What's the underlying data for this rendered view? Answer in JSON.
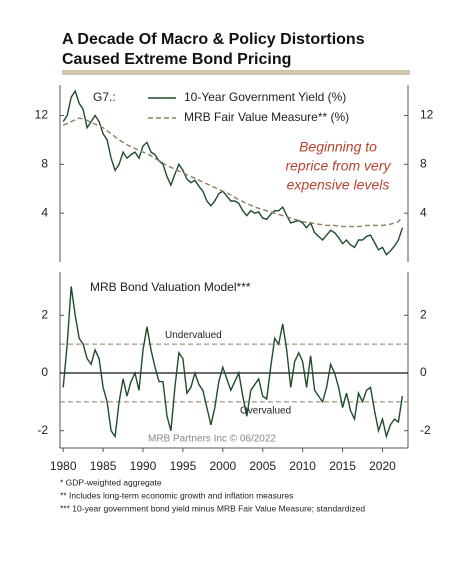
{
  "chart_data": [
    {
      "type": "line",
      "title": [
        "A Decade Of Macro & Policy Distortions",
        "Caused Extreme Bond Pricing"
      ],
      "legend_title": "G7.:",
      "annotation": [
        "Beginning to",
        "reprice from very",
        "expensive levels"
      ],
      "xlim": [
        1979.6,
        2023.2
      ],
      "ylim": [
        0,
        14.5
      ],
      "yticks": [
        4,
        8,
        12
      ],
      "y2lim": [
        0,
        14.5
      ],
      "y2ticks": [
        4,
        8,
        12
      ],
      "series": [
        {
          "name": "10-Year Government Yield (%)",
          "color": "#1f4d2b",
          "dash": false,
          "x": [
            1980,
            1980.5,
            1981,
            1981.5,
            1982,
            1982.5,
            1983,
            1983.5,
            1984,
            1984.5,
            1985,
            1985.5,
            1986,
            1986.5,
            1987,
            1987.5,
            1988,
            1988.5,
            1989,
            1989.5,
            1990,
            1990.5,
            1991,
            1991.5,
            1992,
            1992.5,
            1993,
            1993.5,
            1994,
            1994.5,
            1995,
            1995.5,
            1996,
            1996.5,
            1997,
            1997.5,
            1998,
            1998.5,
            1999,
            1999.5,
            2000,
            2000.5,
            2001,
            2001.5,
            2002,
            2002.5,
            2003,
            2003.5,
            2004,
            2004.5,
            2005,
            2005.5,
            2006,
            2006.5,
            2007,
            2007.5,
            2008,
            2008.5,
            2009,
            2009.5,
            2010,
            2010.5,
            2011,
            2011.5,
            2012,
            2012.5,
            2013,
            2013.5,
            2014,
            2014.5,
            2015,
            2015.5,
            2016,
            2016.5,
            2017,
            2017.5,
            2018,
            2018.5,
            2019,
            2019.5,
            2020,
            2020.5,
            2021,
            2021.5,
            2022,
            2022.5
          ],
          "values": [
            11.5,
            12,
            13.5,
            14,
            13,
            12.5,
            11,
            11.5,
            12,
            11.5,
            10.5,
            10,
            8.5,
            7.5,
            8,
            9,
            8.5,
            8.8,
            9,
            8.5,
            9.5,
            9.8,
            9,
            8.8,
            8.3,
            8,
            7,
            6.3,
            7.2,
            8,
            7.5,
            6.8,
            6.5,
            6.7,
            6.2,
            5.8,
            5,
            4.6,
            5,
            5.6,
            5.8,
            5.4,
            5,
            5,
            4.8,
            4.2,
            3.8,
            4.2,
            4,
            4.1,
            3.6,
            3.5,
            3.9,
            4.2,
            4.2,
            4.5,
            3.8,
            3.2,
            3.3,
            3.4,
            3.2,
            2.8,
            3.2,
            2.4,
            2.1,
            1.8,
            2.2,
            2.6,
            2.4,
            2,
            1.5,
            1.8,
            1.4,
            1.2,
            1.8,
            1.8,
            2.1,
            2.2,
            1.6,
            1,
            1.2,
            0.6,
            0.9,
            1.3,
            1.8,
            2.8
          ]
        },
        {
          "name": "MRB Fair Value Measure** (%)",
          "color": "#8a8060",
          "dash": true,
          "x": [
            1980,
            1981,
            1982,
            1983,
            1984,
            1985,
            1986,
            1987,
            1988,
            1989,
            1990,
            1991,
            1992,
            1993,
            1994,
            1995,
            1996,
            1997,
            1998,
            1999,
            2000,
            2001,
            2002,
            2003,
            2004,
            2005,
            2006,
            2007,
            2008,
            2009,
            2010,
            2011,
            2012,
            2013,
            2014,
            2015,
            2016,
            2017,
            2018,
            2019,
            2020,
            2021,
            2022,
            2022.5
          ],
          "values": [
            11.2,
            11.5,
            11.8,
            11.6,
            11.3,
            11,
            10.5,
            10,
            9.6,
            9.3,
            9,
            8.7,
            8.3,
            7.9,
            7.6,
            7.3,
            7,
            6.7,
            6.4,
            6.1,
            5.8,
            5.5,
            5.1,
            4.8,
            4.5,
            4.3,
            4.1,
            3.9,
            3.7,
            3.5,
            3.3,
            3.2,
            3.1,
            3,
            3,
            2.9,
            2.9,
            2.9,
            3,
            3,
            3,
            3.1,
            3.3,
            3.7
          ]
        }
      ]
    },
    {
      "type": "line",
      "title": "MRB Bond Valuation Model***",
      "source": "MRB Partners Inc © 06/2022",
      "xlim": [
        1979.6,
        2023.2
      ],
      "xticks": [
        1980,
        1985,
        1990,
        1995,
        2000,
        2005,
        2010,
        2015,
        2020
      ],
      "ylim": [
        -2.6,
        3.5
      ],
      "yticks": [
        -2,
        0,
        2
      ],
      "y2lim": [
        -2.6,
        3.5
      ],
      "y2ticks": [
        -2,
        0,
        2
      ],
      "reference_lines": [
        {
          "value": 1,
          "label": "Undervalued",
          "dash": true
        },
        {
          "value": 0,
          "dash": false
        },
        {
          "value": -1,
          "label": "Overvalued",
          "dash": true
        }
      ],
      "series": [
        {
          "color": "#1f4d2b",
          "x": [
            1980,
            1980.5,
            1981,
            1981.5,
            1982,
            1982.5,
            1983,
            1983.5,
            1984,
            1984.5,
            1985,
            1985.5,
            1986,
            1986.5,
            1987,
            1987.5,
            1988,
            1988.5,
            1989,
            1989.5,
            1990,
            1990.5,
            1991,
            1991.5,
            1992,
            1992.5,
            1993,
            1993.5,
            1994,
            1994.5,
            1995,
            1995.5,
            1996,
            1996.5,
            1997,
            1997.5,
            1998,
            1998.5,
            1999,
            1999.5,
            2000,
            2000.5,
            2001,
            2001.5,
            2002,
            2002.5,
            2003,
            2003.5,
            2004,
            2004.5,
            2005,
            2005.5,
            2006,
            2006.5,
            2007,
            2007.5,
            2008,
            2008.5,
            2009,
            2009.5,
            2010,
            2010.5,
            2011,
            2011.5,
            2012,
            2012.5,
            2013,
            2013.5,
            2014,
            2014.5,
            2015,
            2015.5,
            2016,
            2016.5,
            2017,
            2017.5,
            2018,
            2018.5,
            2019,
            2019.5,
            2020,
            2020.5,
            2021,
            2021.5,
            2022,
            2022.5
          ],
          "values": [
            -0.5,
            1,
            3,
            2,
            1.2,
            1,
            0.5,
            0.3,
            0.8,
            0.5,
            -0.5,
            -1,
            -2,
            -2.2,
            -1,
            -0.2,
            -0.8,
            -0.3,
            0,
            -0.6,
            0.8,
            1.6,
            0.8,
            0.2,
            -0.3,
            -0.3,
            -1.5,
            -2,
            -0.5,
            0.7,
            0.5,
            -0.7,
            -0.5,
            0,
            -0.4,
            -0.6,
            -1.2,
            -1.8,
            -1.2,
            -0.3,
            0.2,
            -0.2,
            -0.6,
            -0.3,
            0,
            -0.8,
            -1.5,
            -0.6,
            -0.4,
            -0.2,
            -0.8,
            -0.9,
            0.2,
            1.2,
            1,
            1.7,
            0.8,
            -0.5,
            0.4,
            0.7,
            0.4,
            -0.5,
            0.6,
            -0.6,
            -0.8,
            -1,
            -0.5,
            0.3,
            0,
            -0.5,
            -1.2,
            -0.7,
            -1.3,
            -1.6,
            -0.7,
            -1,
            -0.6,
            -0.5,
            -1.3,
            -2,
            -1.6,
            -2.2,
            -1.8,
            -1.6,
            -1.7,
            -0.8
          ]
        }
      ]
    }
  ],
  "footnotes": [
    "*   GDP-weighted aggregate",
    "**  Includes long-term economic growth and inflation measures",
    "*** 10-year government bond yield minus MRB Fair Value Measure; standardized"
  ]
}
